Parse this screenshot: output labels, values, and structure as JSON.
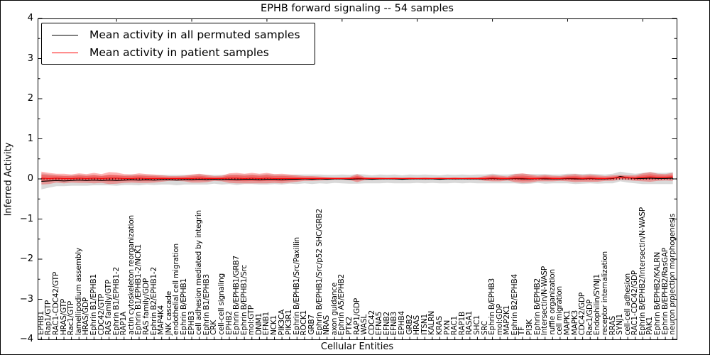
{
  "chart_data": {
    "type": "line",
    "title": "EPHB forward signaling -- 54 samples",
    "xlabel": "Cellular Entities",
    "ylabel": "Inferred Activity",
    "ylim": [
      -4,
      4
    ],
    "yticks": [
      -4,
      -3,
      -2,
      -1,
      0,
      1,
      2,
      3,
      4
    ],
    "grid": false,
    "legend_position": "upper left",
    "zero_line_style": "dotted",
    "categories": [
      "EPHB1",
      "Rap1/GTP",
      "RAC1-CDC42/GTP",
      "HRAS/GTP",
      "Rac1/GTP",
      "lamellipodium assembly",
      "HRAS/GDP",
      "Ephrin B1/EPHB1",
      "CDC42/GTP",
      "RAS family/GTP",
      "Ephrin B1/EPHB1-2",
      "RAP1A",
      "actin cytoskeleton reorganization",
      "Ephrin B1/EPHB1-2/NCK1",
      "RAS family/GDP",
      "Ephrin B2/EPHB1-2",
      "MAP4K4",
      "JNK cascade",
      "endothelial cell migration",
      "Ephrin B/EPHB1",
      "EPHB3",
      "cell adhesion mediated by integrin",
      "Ephrin B1/EPHB3",
      "CRK",
      "cell-cell signaling",
      "EPHB2",
      "Ephrin B/EPHB1/GRB7",
      "Ephrin B/EPHB1/Src",
      "mol:GTP",
      "DNM1",
      "EFNB1",
      "NCK1",
      "PIK3CA",
      "PIK3R1",
      "Ephrin B/EPHB1/Src/Paxillin",
      "ROCK1",
      "GRB7",
      "Ephrin B/EPHB1/Src/p52 SHC/GRB2",
      "NRAS",
      "axon guidance",
      "Ephrin A5/EPHB2",
      "PTK2",
      "RAP1/GDP",
      "WASL",
      "CDC42",
      "EFNA5",
      "EFNB2",
      "EFNB3",
      "EPHB4",
      "GRB2",
      "HRAS",
      "ITSN1",
      "KALRN",
      "KRAS",
      "PXN",
      "RAC1",
      "RAP1B",
      "RASA1",
      "SHC1",
      "SRC",
      "Ephrin B/EPHB3",
      "mol:GDP",
      "MAP2K1",
      "Ephrin B2/EPHB4",
      "TF",
      "PI3K",
      "Ephrin B/EPHB2",
      "Intersectin/N-WASP",
      "ruffle organization",
      "cell migration",
      "MAPK1",
      "MAPK3",
      "CDC42/GDP",
      "Rac1/GDP",
      "Endophilin/SYNJ1",
      "receptor internalization",
      "RRAS",
      "SYNJ1",
      "cell-cell adhesion",
      "RAC1-CDC42/GDP",
      "Ephrin B/EPHB2/Intersectin/N-WASP",
      "PAK1",
      "Ephrin B/EPHB2/KALRN",
      "Ephrin B/EPHB2/RasGAP",
      "neuron projection morphogenesis"
    ],
    "series": [
      {
        "name": "Mean activity in all permuted samples",
        "color": "#000000",
        "band_color": "#000000",
        "band_opacity": 0.15,
        "values": [
          -0.06,
          -0.05,
          -0.04,
          -0.05,
          -0.04,
          -0.03,
          -0.04,
          -0.03,
          -0.04,
          -0.03,
          -0.04,
          -0.03,
          -0.02,
          -0.03,
          -0.02,
          -0.03,
          -0.02,
          -0.02,
          -0.03,
          -0.02,
          -0.02,
          -0.01,
          -0.02,
          -0.01,
          -0.02,
          -0.01,
          -0.02,
          -0.01,
          -0.01,
          -0.02,
          -0.01,
          -0.01,
          -0.02,
          -0.01,
          -0.01,
          0,
          -0.01,
          0,
          -0.01,
          0,
          0,
          -0.01,
          0,
          0,
          -0.01,
          0,
          0,
          0,
          -0.01,
          0,
          0,
          0,
          0,
          -0.01,
          0,
          0,
          0,
          0,
          0,
          0,
          0.01,
          0,
          0,
          0.01,
          0,
          0,
          0.01,
          0,
          0,
          0,
          0.01,
          0,
          0,
          0.01,
          0,
          0,
          0.01,
          0.06,
          0.03,
          0.01,
          0.01,
          0.02,
          0.01,
          0.01,
          0.02
        ],
        "std": [
          0.2,
          0.17,
          0.14,
          0.13,
          0.13,
          0.14,
          0.13,
          0.13,
          0.12,
          0.13,
          0.13,
          0.12,
          0.13,
          0.13,
          0.12,
          0.12,
          0.12,
          0.12,
          0.13,
          0.12,
          0.12,
          0.13,
          0.12,
          0.11,
          0.12,
          0.12,
          0.13,
          0.12,
          0.12,
          0.12,
          0.13,
          0.12,
          0.12,
          0.11,
          0.12,
          0.11,
          0.12,
          0.11,
          0.11,
          0.1,
          0.11,
          0.11,
          0.12,
          0.11,
          0.1,
          0.11,
          0.1,
          0.11,
          0.1,
          0.11,
          0.1,
          0.11,
          0.1,
          0.1,
          0.11,
          0.1,
          0.11,
          0.1,
          0.11,
          0.11,
          0.12,
          0.11,
          0.11,
          0.12,
          0.13,
          0.12,
          0.11,
          0.12,
          0.11,
          0.11,
          0.12,
          0.13,
          0.12,
          0.12,
          0.12,
          0.11,
          0.12,
          0.12,
          0.12,
          0.12,
          0.14,
          0.15,
          0.14,
          0.14,
          0.15
        ]
      },
      {
        "name": "Mean activity in patient samples",
        "color": "#ff0000",
        "band_color": "#ff0000",
        "band_opacity": 0.3,
        "values": [
          0.02,
          0.01,
          0.02,
          0.01,
          0.01,
          0.02,
          0.01,
          0.02,
          0.01,
          0.02,
          0.02,
          0.01,
          0.01,
          0.02,
          0.01,
          0.01,
          0.01,
          0.01,
          0.01,
          0.01,
          0.01,
          0.02,
          0.01,
          0.01,
          0.01,
          0.02,
          0.02,
          0.01,
          0.02,
          0.01,
          0.02,
          0.01,
          0.01,
          0.01,
          0.01,
          0.01,
          0.01,
          0.01,
          0.01,
          0.01,
          0.01,
          0.01,
          0.02,
          0.01,
          0.01,
          0.01,
          0.01,
          0.01,
          0.01,
          0.01,
          0.01,
          0.01,
          0.01,
          0.01,
          0.01,
          0.01,
          0.01,
          0.01,
          0.01,
          0.01,
          0.02,
          0.01,
          0.01,
          0.02,
          0.02,
          0.01,
          0.01,
          0.02,
          0.01,
          0.01,
          0.02,
          0.02,
          0.01,
          0.02,
          0.01,
          0.01,
          0.02,
          0.04,
          0.03,
          0.02,
          0.04,
          0.05,
          0.04,
          0.04,
          0.05
        ],
        "std": [
          0.16,
          0.14,
          0.11,
          0.12,
          0.1,
          0.12,
          0.11,
          0.13,
          0.11,
          0.15,
          0.14,
          0.11,
          0.1,
          0.12,
          0.11,
          0.1,
          0.08,
          0.06,
          0.06,
          0.07,
          0.1,
          0.11,
          0.09,
          0.06,
          0.07,
          0.12,
          0.13,
          0.12,
          0.13,
          0.12,
          0.13,
          0.11,
          0.12,
          0.1,
          0.08,
          0.06,
          0.06,
          0.05,
          0.04,
          0.03,
          0.03,
          0.04,
          0.1,
          0.04,
          0.03,
          0.03,
          0.02,
          0.03,
          0.02,
          0.03,
          0.02,
          0.03,
          0.02,
          0.03,
          0.02,
          0.03,
          0.02,
          0.03,
          0.03,
          0.06,
          0.08,
          0.07,
          0.05,
          0.1,
          0.12,
          0.1,
          0.07,
          0.08,
          0.07,
          0.06,
          0.08,
          0.1,
          0.08,
          0.09,
          0.08,
          0.06,
          0.07,
          0.06,
          0.06,
          0.07,
          0.1,
          0.12,
          0.09,
          0.08,
          0.1
        ]
      }
    ]
  }
}
